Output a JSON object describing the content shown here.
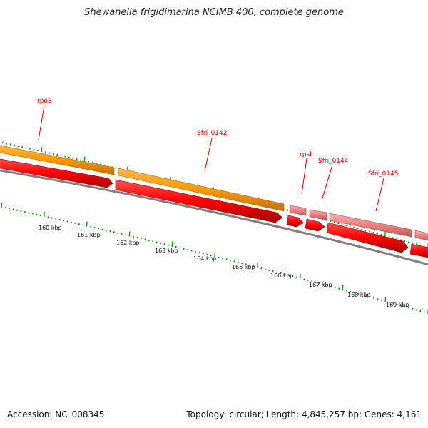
{
  "title": "Shewanella frigidimarina NCIMB 400, complete genome",
  "footer": {
    "accession": "Accession: NC_008345",
    "stats": "Topology: circular; Length: 4,845,257 bp; Genes: 4,161"
  },
  "colors": {
    "orange_feature": "#ff9900",
    "pink_feature": "#f08080",
    "red_feature": "#ff0000",
    "backbone": "#808080",
    "tick": "#1a8a1a",
    "gene_label": "#cc0000"
  },
  "genes": [
    {
      "name": "rpoB"
    },
    {
      "name": "Sfri_0142"
    },
    {
      "name": "rpsL"
    },
    {
      "name": "Sfri_0144"
    },
    {
      "name": "Sfri_0145"
    }
  ],
  "scale_labels": [
    "160 kbp",
    "161 kbp",
    "162 kbp",
    "163 kbp",
    "164 kbp",
    "165 kbp",
    "166 kbp",
    "167 kbp",
    "168 kbp",
    "169 kbp"
  ]
}
